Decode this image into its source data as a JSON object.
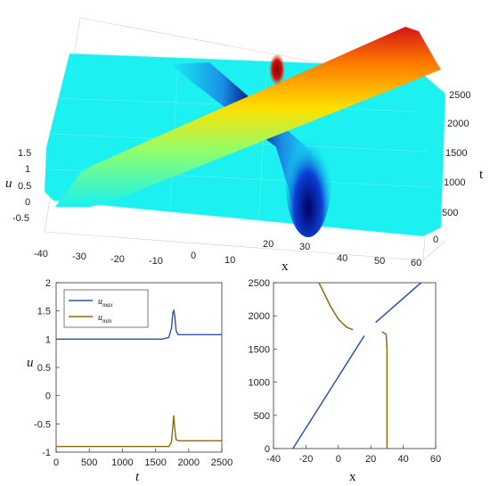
{
  "chart_data": [
    {
      "type": "surface",
      "xlabel": "x",
      "zlabel": "u",
      "ylabel": "t",
      "x_ticks": [
        "-40",
        "-30",
        "-20",
        "-10",
        "0",
        "10",
        "20",
        "30",
        "40",
        "50",
        "60"
      ],
      "z_ticks": [
        "1.5",
        "1",
        "0.5",
        "0",
        "-0.5"
      ],
      "y_ticks": [
        "0",
        "500",
        "1000",
        "1500",
        "2000",
        "2500"
      ],
      "xlim": [
        -40,
        60
      ],
      "ylim": [
        0,
        2500
      ],
      "zlim": [
        -0.9,
        1.6
      ],
      "colormap": "jet"
    },
    {
      "type": "line",
      "xlabel": "t",
      "ylabel": "u",
      "x_ticks": [
        "0",
        "500",
        "1000",
        "1500",
        "2000",
        "2500"
      ],
      "y_ticks": [
        "2",
        "1.5",
        "1",
        "0.5",
        "0",
        "-0.5",
        "-1"
      ],
      "xlim": [
        0,
        2500
      ],
      "ylim": [
        -1,
        2
      ],
      "legend_position": "top-left",
      "series": [
        {
          "name": "u_max",
          "label_base": "u",
          "label_sub": "max",
          "color": "#2d54a8",
          "points": [
            [
              0,
              1
            ],
            [
              1600,
              1
            ],
            [
              1700,
              1.03
            ],
            [
              1740,
              1.2
            ],
            [
              1760,
              1.45
            ],
            [
              1775,
              1.52
            ],
            [
              1790,
              1.4
            ],
            [
              1810,
              1.15
            ],
            [
              1840,
              1.08
            ],
            [
              2500,
              1.08
            ]
          ]
        },
        {
          "name": "u_min",
          "label_base": "u",
          "label_sub": "min",
          "color": "#8a6d0b",
          "points": [
            [
              0,
              -0.9
            ],
            [
              1700,
              -0.9
            ],
            [
              1740,
              -0.82
            ],
            [
              1760,
              -0.55
            ],
            [
              1775,
              -0.35
            ],
            [
              1790,
              -0.6
            ],
            [
              1810,
              -0.78
            ],
            [
              1850,
              -0.8
            ],
            [
              2500,
              -0.8
            ]
          ]
        }
      ]
    },
    {
      "type": "line",
      "xlabel": "x",
      "ylabel": "t",
      "x_ticks": [
        "-40",
        "-20",
        "0",
        "20",
        "40",
        "60"
      ],
      "y_ticks": [
        "2500",
        "2000",
        "1500",
        "1000",
        "500",
        "0"
      ],
      "xlim": [
        -40,
        60
      ],
      "ylim": [
        0,
        2500
      ],
      "series": [
        {
          "color": "#2d54a8",
          "points": [
            [
              -28,
              0
            ],
            [
              16,
              1700
            ]
          ]
        },
        {
          "color": "#2d54a8",
          "points": [
            [
              23,
              1900
            ],
            [
              51,
              2500
            ]
          ]
        },
        {
          "color": "#8a6d0b",
          "points": [
            [
              -12,
              2500
            ],
            [
              -5,
              2150
            ],
            [
              0,
              1950
            ],
            [
              5,
              1830
            ],
            [
              9,
              1790
            ]
          ]
        },
        {
          "color": "#8a6d0b",
          "points": [
            [
              27,
              1760
            ],
            [
              29.5,
              1720
            ],
            [
              30,
              1500
            ],
            [
              30,
              0
            ]
          ]
        }
      ]
    }
  ]
}
